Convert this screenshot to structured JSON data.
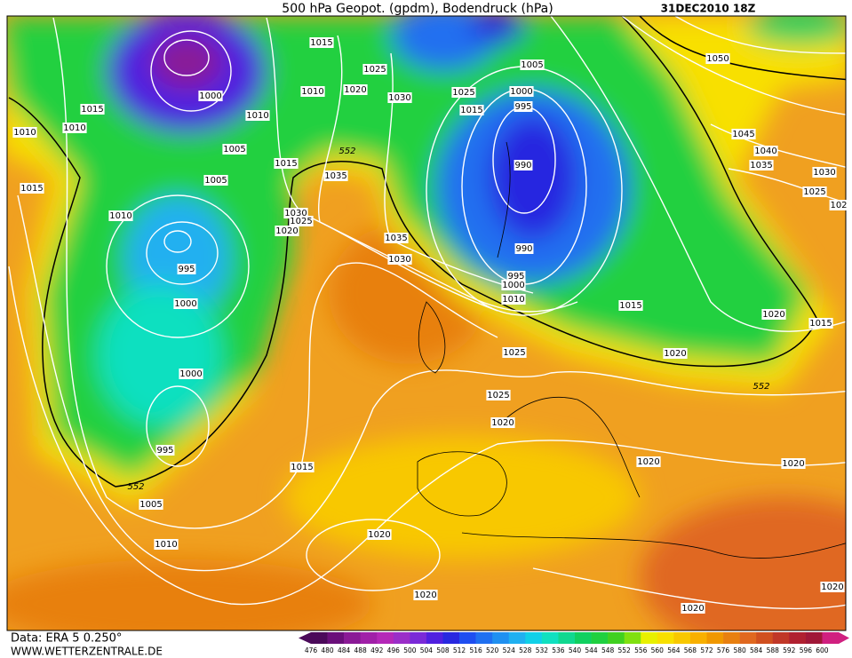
{
  "header": {
    "title": "500 hPa Geopot. (gpdm), Bodendruck (hPa)",
    "date": "31DEC2010 18Z"
  },
  "isobar_labels": [
    "1015",
    "1025",
    "1010",
    "1020",
    "1030",
    "1000",
    "1010",
    "1015",
    "1010",
    "1010",
    "1005",
    "1015",
    "1035",
    "1005",
    "1015",
    "1030",
    "1025",
    "1020",
    "1010",
    "1035",
    "1030",
    "995",
    "1000",
    "1000",
    "995",
    "1005",
    "1010",
    "1015",
    "1020",
    "1020",
    "1025",
    "1015",
    "1000",
    "995",
    "990",
    "990",
    "995",
    "1000",
    "1010",
    "1005",
    "1015",
    "1025",
    "1025",
    "1020",
    "1020",
    "1020",
    "1015",
    "1020",
    "1020",
    "1020",
    "1020",
    "1050",
    "1045",
    "1040",
    "1035",
    "1030",
    "1025",
    "102"
  ],
  "contour_552_labels": [
    "552",
    "552",
    "552"
  ],
  "footer": {
    "data": "Data: ERA 5 0.250°",
    "site": "WWW.WETTERZENTRALE.DE"
  },
  "legend": {
    "labels": [
      476,
      480,
      484,
      488,
      492,
      496,
      500,
      504,
      508,
      512,
      516,
      520,
      524,
      528,
      532,
      536,
      540,
      544,
      548,
      552,
      556,
      560,
      564,
      568,
      572,
      576,
      580,
      584,
      588,
      592,
      596,
      600
    ],
    "colors": [
      "#4b0a5a",
      "#6a0f7a",
      "#8a1a96",
      "#a020a8",
      "#b428b8",
      "#9a2ec8",
      "#7a2ad8",
      "#5020e0",
      "#2828e0",
      "#1e4ef0",
      "#2070f0",
      "#2090f0",
      "#20b0f0",
      "#10d0e8",
      "#10e0c0",
      "#10d890",
      "#10d060",
      "#20d040",
      "#40d020",
      "#80e010",
      "#e8f000",
      "#f8e000",
      "#f8c800",
      "#f8b000",
      "#f09800",
      "#e88010",
      "#e06820",
      "#d05020",
      "#c03828",
      "#b02030",
      "#a01838",
      "#d02080"
    ]
  }
}
